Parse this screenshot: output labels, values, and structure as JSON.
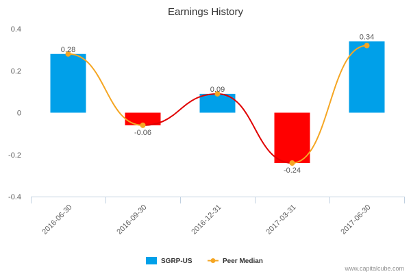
{
  "chart_data": {
    "type": "bar",
    "title": "Earnings History",
    "categories": [
      "2016-06-30",
      "2016-09-30",
      "2016-12-31",
      "2017-03-31",
      "2017-06-30"
    ],
    "series": [
      {
        "name": "SGRP-US",
        "type": "bar",
        "values": [
          0.28,
          -0.06,
          0.09,
          -0.24,
          0.34
        ],
        "data_labels": [
          "0.28",
          "-0.06",
          "0.09",
          "-0.24",
          "0.34"
        ],
        "color_positive": "#00a0e9",
        "color_negative": "#ff0000"
      },
      {
        "name": "Peer Median",
        "type": "line",
        "values": [
          0.28,
          -0.06,
          0.09,
          -0.24,
          0.32
        ],
        "color": "#f5a623",
        "segment_colors": [
          "#f5a623",
          "#e00000",
          "#e00000",
          "#f5a623"
        ]
      }
    ],
    "yticks": [
      "0.4",
      "0.2",
      "0",
      "-0.2",
      "-0.4"
    ],
    "ylim": [
      -0.4,
      0.4
    ],
    "grid": false,
    "legend_position": "bottom-center"
  },
  "credit": "www.capitalcube.com"
}
